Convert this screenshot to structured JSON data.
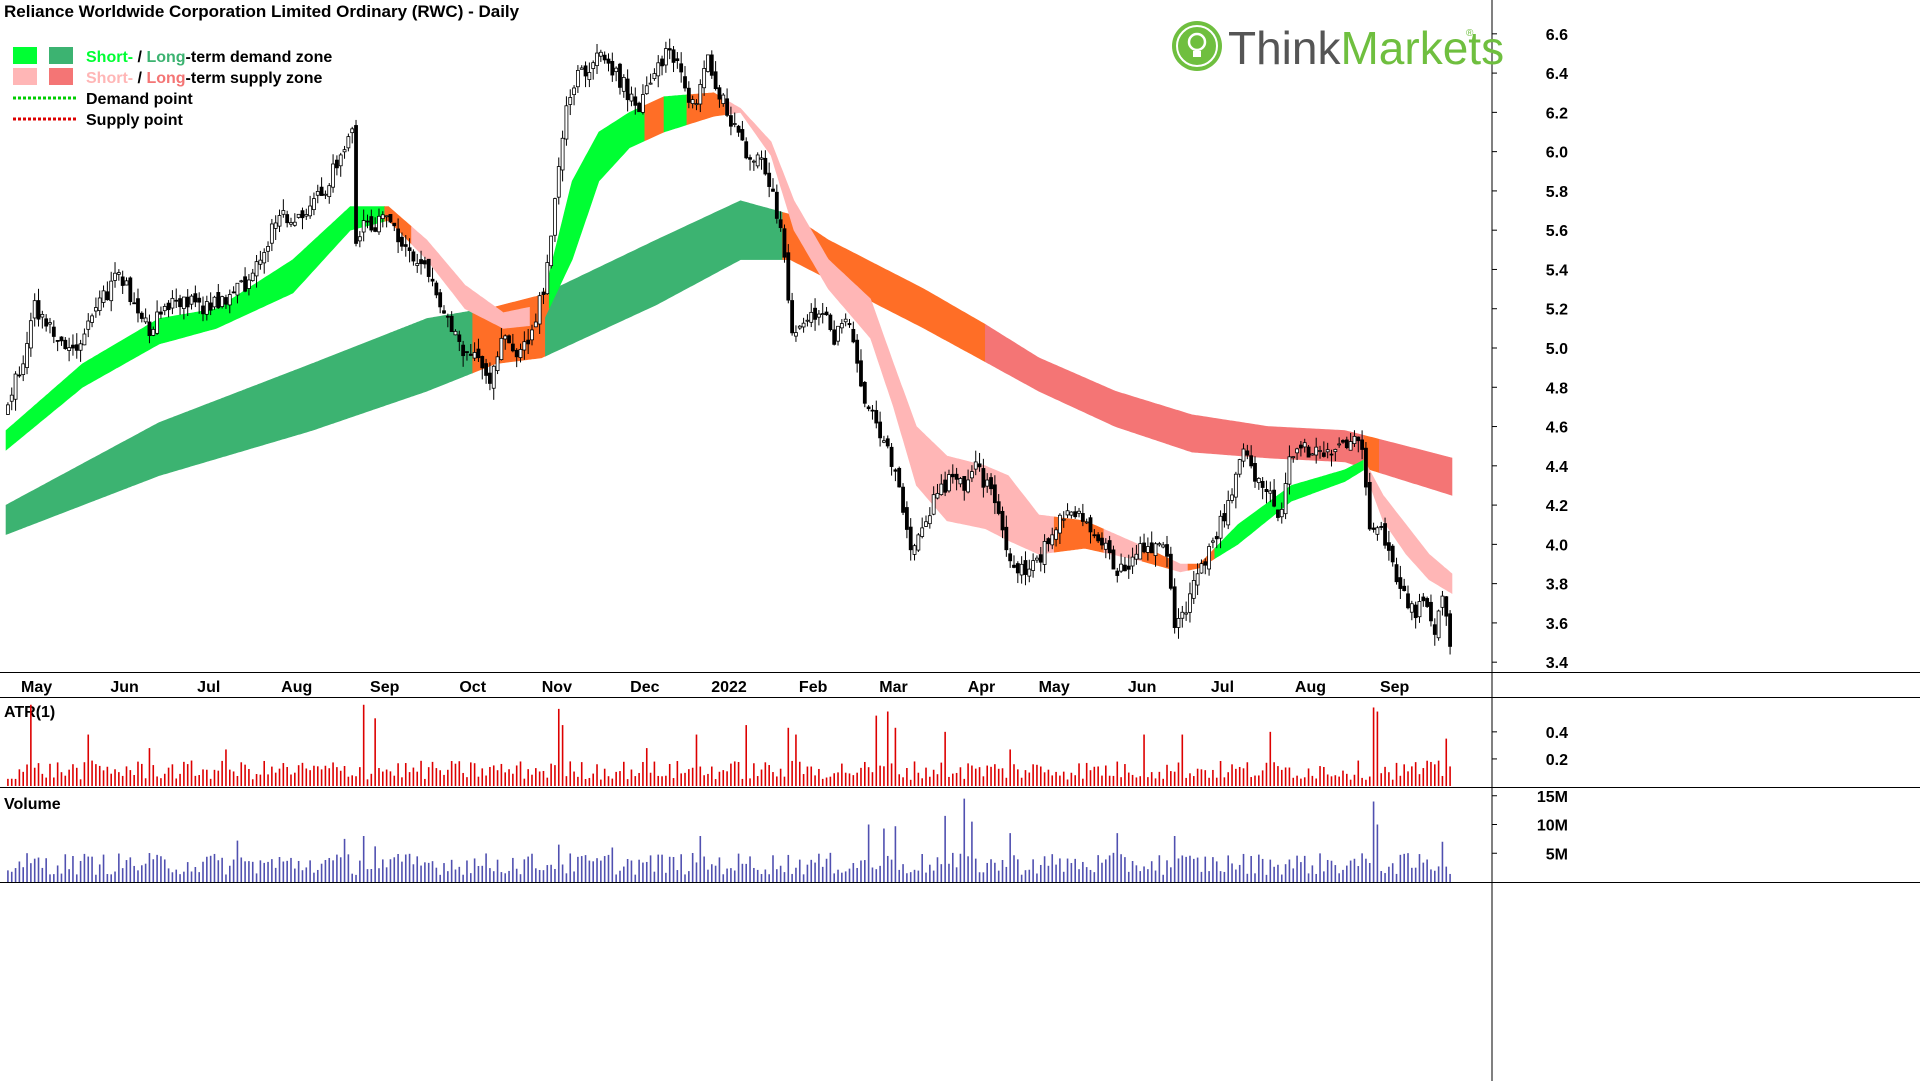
{
  "chart_data": {
    "type": "candlestick",
    "title": "Reliance Worldwide Corporation Limited Ordinary (RWC) - Daily",
    "brand": "ThinkMarkets",
    "brand_parts": [
      "Think",
      "Markets"
    ],
    "brand_mark": "®",
    "legend": {
      "placement": "top-left",
      "items": [
        {
          "kind": "zone",
          "swatches": [
            "#00ff33",
            "#3cb371"
          ],
          "parts": [
            {
              "text": "Short-",
              "color": "#00ff33"
            },
            {
              "text": " / ",
              "color": "#000000"
            },
            {
              "text": "Long",
              "color": "#3cb371"
            },
            {
              "text": "-term demand zone",
              "color": "#000000"
            }
          ]
        },
        {
          "kind": "zone",
          "swatches": [
            "#ffb6b6",
            "#f47575"
          ],
          "parts": [
            {
              "text": "Short-",
              "color": "#ffb6b6"
            },
            {
              "text": " / ",
              "color": "#000000"
            },
            {
              "text": "Long",
              "color": "#f47575"
            },
            {
              "text": "-term supply zone",
              "color": "#000000"
            }
          ]
        },
        {
          "kind": "point",
          "color": "#00cc00",
          "parts": [
            {
              "text": "Demand point",
              "color": "#000000"
            }
          ]
        },
        {
          "kind": "point",
          "color": "#dd0000",
          "parts": [
            {
              "text": "Supply point",
              "color": "#000000"
            }
          ]
        }
      ]
    },
    "x_axis": {
      "labels": [
        "May",
        "Jun",
        "Jul",
        "Aug",
        "Sep",
        "Oct",
        "Nov",
        "Dec",
        "2022",
        "Feb",
        "Mar",
        "Apr",
        "May",
        "Jun",
        "Jul",
        "Aug",
        "Sep"
      ],
      "label_days": [
        8,
        31,
        53,
        76,
        99,
        122,
        144,
        167,
        189,
        211,
        232,
        255,
        274,
        297,
        318,
        341,
        363
      ],
      "start": "2021-04-23",
      "end": "2022-09-29",
      "total_trading_days": 378
    },
    "price_axis": {
      "ylim": [
        3.35,
        6.65
      ],
      "ticks": [
        3.4,
        3.6,
        3.8,
        4.0,
        4.2,
        4.4,
        4.6,
        4.8,
        5.0,
        5.2,
        5.4,
        5.6,
        5.8,
        6.0,
        6.2,
        6.4,
        6.6
      ]
    },
    "price_path": [
      [
        0,
        4.65
      ],
      [
        5,
        4.95
      ],
      [
        8,
        5.2
      ],
      [
        12,
        5.1
      ],
      [
        18,
        5.0
      ],
      [
        24,
        5.18
      ],
      [
        30,
        5.4
      ],
      [
        34,
        5.2
      ],
      [
        38,
        5.1
      ],
      [
        45,
        5.25
      ],
      [
        52,
        5.2
      ],
      [
        58,
        5.25
      ],
      [
        64,
        5.35
      ],
      [
        68,
        5.5
      ],
      [
        72,
        5.7
      ],
      [
        76,
        5.65
      ],
      [
        80,
        5.75
      ],
      [
        84,
        5.8
      ],
      [
        88,
        6.0
      ],
      [
        91,
        6.1
      ],
      [
        92,
        5.5
      ],
      [
        94,
        5.65
      ],
      [
        97,
        5.6
      ],
      [
        100,
        5.7
      ],
      [
        103,
        5.55
      ],
      [
        108,
        5.45
      ],
      [
        112,
        5.35
      ],
      [
        116,
        5.15
      ],
      [
        120,
        5.0
      ],
      [
        124,
        4.95
      ],
      [
        127,
        4.85
      ],
      [
        130,
        5.05
      ],
      [
        134,
        4.95
      ],
      [
        138,
        5.1
      ],
      [
        141,
        5.3
      ],
      [
        143,
        5.6
      ],
      [
        145,
        5.9
      ],
      [
        147,
        6.2
      ],
      [
        150,
        6.4
      ],
      [
        154,
        6.45
      ],
      [
        157,
        6.5
      ],
      [
        160,
        6.4
      ],
      [
        163,
        6.3
      ],
      [
        166,
        6.2
      ],
      [
        170,
        6.4
      ],
      [
        173,
        6.5
      ],
      [
        176,
        6.45
      ],
      [
        178,
        6.3
      ],
      [
        181,
        6.25
      ],
      [
        184,
        6.45
      ],
      [
        187,
        6.3
      ],
      [
        190,
        6.15
      ],
      [
        194,
        6.0
      ],
      [
        198,
        5.95
      ],
      [
        201,
        5.8
      ],
      [
        203,
        5.6
      ],
      [
        206,
        5.1
      ],
      [
        210,
        5.15
      ],
      [
        214,
        5.2
      ],
      [
        217,
        5.05
      ],
      [
        220,
        5.15
      ],
      [
        222,
        5.0
      ],
      [
        225,
        4.75
      ],
      [
        228,
        4.6
      ],
      [
        231,
        4.5
      ],
      [
        234,
        4.3
      ],
      [
        237,
        4.0
      ],
      [
        240,
        4.1
      ],
      [
        244,
        4.25
      ],
      [
        248,
        4.35
      ],
      [
        251,
        4.3
      ],
      [
        254,
        4.4
      ],
      [
        257,
        4.3
      ],
      [
        260,
        4.15
      ],
      [
        263,
        3.9
      ],
      [
        267,
        3.85
      ],
      [
        271,
        3.95
      ],
      [
        275,
        4.1
      ],
      [
        279,
        4.2
      ],
      [
        282,
        4.1
      ],
      [
        286,
        4.05
      ],
      [
        290,
        3.9
      ],
      [
        293,
        3.85
      ],
      [
        296,
        3.95
      ],
      [
        300,
        4.0
      ],
      [
        304,
        3.95
      ],
      [
        306,
        3.6
      ],
      [
        309,
        3.65
      ],
      [
        312,
        3.85
      ],
      [
        316,
        4.0
      ],
      [
        320,
        4.2
      ],
      [
        324,
        4.45
      ],
      [
        327,
        4.35
      ],
      [
        330,
        4.3
      ],
      [
        333,
        4.1
      ],
      [
        336,
        4.45
      ],
      [
        340,
        4.5
      ],
      [
        344,
        4.45
      ],
      [
        348,
        4.5
      ],
      [
        352,
        4.55
      ],
      [
        355,
        4.45
      ],
      [
        357,
        4.05
      ],
      [
        360,
        4.1
      ],
      [
        363,
        3.9
      ],
      [
        366,
        3.75
      ],
      [
        369,
        3.65
      ],
      [
        372,
        3.7
      ],
      [
        374,
        3.55
      ],
      [
        376,
        3.7
      ],
      [
        378,
        3.5
      ]
    ],
    "zones": [
      {
        "name": "long-term",
        "start": 0,
        "end": 378,
        "upper_color": "#3cb371",
        "lower_color": "#f47575",
        "mixed_color": "#ff6e26",
        "upper": [
          [
            0,
            4.2
          ],
          [
            40,
            4.62
          ],
          [
            80,
            4.92
          ],
          [
            110,
            5.15
          ],
          [
            128,
            5.21
          ],
          [
            140,
            5.27
          ],
          [
            170,
            5.55
          ],
          [
            192,
            5.75
          ],
          [
            205,
            5.68
          ],
          [
            215,
            5.55
          ],
          [
            240,
            5.3
          ],
          [
            256,
            5.12
          ],
          [
            270,
            4.95
          ],
          [
            290,
            4.78
          ],
          [
            310,
            4.66
          ],
          [
            330,
            4.6
          ],
          [
            350,
            4.58
          ],
          [
            378,
            4.44
          ]
        ],
        "lower": [
          [
            0,
            4.05
          ],
          [
            40,
            4.35
          ],
          [
            80,
            4.58
          ],
          [
            110,
            4.78
          ],
          [
            128,
            4.92
          ],
          [
            140,
            4.95
          ],
          [
            170,
            5.22
          ],
          [
            192,
            5.45
          ],
          [
            205,
            5.45
          ],
          [
            215,
            5.35
          ],
          [
            240,
            5.1
          ],
          [
            256,
            4.93
          ],
          [
            270,
            4.78
          ],
          [
            290,
            4.6
          ],
          [
            310,
            4.47
          ],
          [
            330,
            4.44
          ],
          [
            350,
            4.42
          ],
          [
            378,
            4.25
          ]
        ],
        "color_runs": [
          [
            0,
            122,
            "up"
          ],
          [
            122,
            141,
            "mix"
          ],
          [
            141,
            203,
            "up"
          ],
          [
            203,
            256,
            "mix"
          ],
          [
            256,
            355,
            "dn"
          ],
          [
            355,
            359,
            "mix"
          ],
          [
            359,
            378,
            "dn"
          ]
        ]
      },
      {
        "name": "short-term",
        "start": 0,
        "end": 378,
        "upper_color": "#00ff33",
        "lower_color": "#ffb6b6",
        "mixed_color": "#ff6e26",
        "upper": [
          [
            0,
            4.58
          ],
          [
            20,
            4.92
          ],
          [
            40,
            5.15
          ],
          [
            55,
            5.2
          ],
          [
            75,
            5.45
          ],
          [
            90,
            5.72
          ],
          [
            100,
            5.72
          ],
          [
            110,
            5.55
          ],
          [
            120,
            5.32
          ],
          [
            130,
            5.18
          ],
          [
            140,
            5.22
          ],
          [
            148,
            5.85
          ],
          [
            155,
            6.1
          ],
          [
            163,
            6.2
          ],
          [
            172,
            6.28
          ],
          [
            185,
            6.3
          ],
          [
            192,
            6.22
          ],
          [
            200,
            6.05
          ],
          [
            206,
            5.75
          ],
          [
            215,
            5.45
          ],
          [
            226,
            5.25
          ],
          [
            232,
            4.92
          ],
          [
            238,
            4.6
          ],
          [
            246,
            4.45
          ],
          [
            256,
            4.4
          ],
          [
            262,
            4.35
          ],
          [
            270,
            4.15
          ],
          [
            282,
            4.12
          ],
          [
            296,
            4.0
          ],
          [
            307,
            3.9
          ],
          [
            312,
            3.9
          ],
          [
            322,
            4.1
          ],
          [
            336,
            4.3
          ],
          [
            350,
            4.38
          ],
          [
            355,
            4.43
          ],
          [
            360,
            4.25
          ],
          [
            366,
            4.1
          ],
          [
            372,
            3.95
          ],
          [
            378,
            3.85
          ]
        ],
        "lower": [
          [
            0,
            4.48
          ],
          [
            20,
            4.8
          ],
          [
            40,
            5.02
          ],
          [
            55,
            5.1
          ],
          [
            75,
            5.28
          ],
          [
            90,
            5.6
          ],
          [
            100,
            5.65
          ],
          [
            110,
            5.45
          ],
          [
            120,
            5.2
          ],
          [
            130,
            5.1
          ],
          [
            140,
            5.12
          ],
          [
            148,
            5.45
          ],
          [
            155,
            5.85
          ],
          [
            163,
            6.02
          ],
          [
            172,
            6.1
          ],
          [
            185,
            6.18
          ],
          [
            192,
            6.2
          ],
          [
            200,
            5.98
          ],
          [
            206,
            5.6
          ],
          [
            215,
            5.3
          ],
          [
            226,
            5.05
          ],
          [
            232,
            4.7
          ],
          [
            238,
            4.3
          ],
          [
            246,
            4.12
          ],
          [
            256,
            4.08
          ],
          [
            262,
            4.02
          ],
          [
            270,
            3.95
          ],
          [
            282,
            3.98
          ],
          [
            296,
            3.92
          ],
          [
            307,
            3.86
          ],
          [
            312,
            3.88
          ],
          [
            322,
            4.0
          ],
          [
            336,
            4.22
          ],
          [
            350,
            4.32
          ],
          [
            355,
            4.38
          ],
          [
            360,
            4.12
          ],
          [
            366,
            3.95
          ],
          [
            372,
            3.82
          ],
          [
            378,
            3.75
          ]
        ],
        "color_runs": [
          [
            0,
            99,
            "up"
          ],
          [
            99,
            106,
            "mix"
          ],
          [
            106,
            137,
            "dn"
          ],
          [
            137,
            142,
            "mix"
          ],
          [
            142,
            167,
            "up"
          ],
          [
            167,
            172,
            "mix"
          ],
          [
            172,
            178,
            "up"
          ],
          [
            178,
            188,
            "mix"
          ],
          [
            188,
            274,
            "dn"
          ],
          [
            274,
            287,
            "mix"
          ],
          [
            287,
            297,
            "dn"
          ],
          [
            297,
            305,
            "mix"
          ],
          [
            305,
            309,
            "dn"
          ],
          [
            309,
            316,
            "mix"
          ],
          [
            316,
            355,
            "up"
          ],
          [
            355,
            378,
            "dn"
          ]
        ]
      }
    ],
    "atr_panel": {
      "label": "ATR(1)",
      "ylim": [
        0,
        0.65
      ],
      "ticks": [
        0.2,
        0.4
      ],
      "color": "#dd0000",
      "typical": 0.13,
      "spikes": [
        [
          6,
          0.6
        ],
        [
          21,
          0.38
        ],
        [
          37,
          0.28
        ],
        [
          57,
          0.27
        ],
        [
          93,
          0.6
        ],
        [
          96,
          0.5
        ],
        [
          144,
          0.57
        ],
        [
          145,
          0.45
        ],
        [
          167,
          0.28
        ],
        [
          180,
          0.38
        ],
        [
          193,
          0.45
        ],
        [
          204,
          0.43
        ],
        [
          206,
          0.38
        ],
        [
          227,
          0.52
        ],
        [
          230,
          0.55
        ],
        [
          232,
          0.43
        ],
        [
          245,
          0.4
        ],
        [
          262,
          0.27
        ],
        [
          297,
          0.38
        ],
        [
          307,
          0.38
        ],
        [
          330,
          0.4
        ],
        [
          357,
          0.58
        ],
        [
          358,
          0.55
        ],
        [
          376,
          0.35
        ]
      ]
    },
    "volume_panel": {
      "label": "Volume",
      "ylim": [
        0,
        16
      ],
      "ticks": [
        "5M",
        "10M",
        "15M"
      ],
      "tick_values": [
        5,
        10,
        15
      ],
      "color": "#5050b0",
      "typical": 3.5,
      "spikes": [
        [
          60,
          7.2
        ],
        [
          88,
          7.5
        ],
        [
          93,
          8.0
        ],
        [
          96,
          6.2
        ],
        [
          144,
          6.5
        ],
        [
          158,
          6.0
        ],
        [
          181,
          8.0
        ],
        [
          225,
          10.0
        ],
        [
          229,
          9.3
        ],
        [
          232,
          9.7
        ],
        [
          245,
          11.5
        ],
        [
          250,
          14.5
        ],
        [
          252,
          10.5
        ],
        [
          262,
          8.5
        ],
        [
          290,
          8.5
        ],
        [
          305,
          8.0
        ],
        [
          357,
          14.0
        ],
        [
          358,
          10.0
        ],
        [
          375,
          7.0
        ]
      ]
    }
  }
}
